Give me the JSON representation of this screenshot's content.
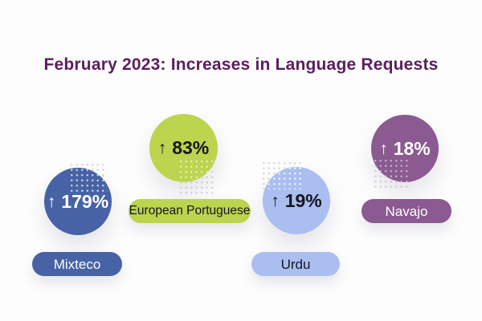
{
  "title": "February 2023: Increases in Language Requests",
  "chart_data": {
    "type": "bubble",
    "title": "February 2023: Increases in Language Requests",
    "categories": [
      "Mixteco",
      "European Portuguese",
      "Urdu",
      "Navajo"
    ],
    "values": [
      179,
      83,
      19,
      18
    ],
    "value_unit": "%",
    "value_prefix": "↑",
    "legend_position": "none",
    "grid": false,
    "notes": "Four labeled bubbles, each showing a percent increase with an up arrow; labels shown in pill badges below each bubble"
  },
  "colors": {
    "background": "#fdfdfd",
    "title": "#5b1e5e"
  },
  "bubbles": [
    {
      "id": "mixteco",
      "label": "Mixteco",
      "arrow": "↑",
      "value_text": "179%",
      "circle_color": "#4763a6",
      "pill_color": "#4763a6",
      "stat_text_color": "#ffffff",
      "label_text_color": "#ffffff",
      "dot_color_inside": "rgba(255,255,255,0.75)",
      "dot_color_outside": "rgba(165,165,180,0.45)"
    },
    {
      "id": "european-portuguese",
      "label": "European Portuguese",
      "arrow": "↑",
      "value_text": "83%",
      "circle_color": "#bcd44e",
      "pill_color": "#bcd44e",
      "stat_text_color": "#15151d",
      "label_text_color": "#15151d",
      "dot_color_inside": "rgba(255,255,255,0.65)",
      "dot_color_outside": "rgba(165,165,180,0.45)"
    },
    {
      "id": "urdu",
      "label": "Urdu",
      "arrow": "↑",
      "value_text": "19%",
      "circle_color": "#aabef0",
      "pill_color": "#aabef0",
      "stat_text_color": "#15151d",
      "label_text_color": "#15151d",
      "dot_color_inside": "rgba(255,255,255,0.85)",
      "dot_color_outside": "rgba(165,165,180,0.45)"
    },
    {
      "id": "navajo",
      "label": "Navajo",
      "arrow": "↑",
      "value_text": "18%",
      "circle_color": "#8a5a91",
      "pill_color": "#8a5a91",
      "stat_text_color": "#ffffff",
      "label_text_color": "#ffffff",
      "dot_color_inside": "rgba(255,255,255,0.55)",
      "dot_color_outside": "rgba(165,165,180,0.45)"
    }
  ]
}
